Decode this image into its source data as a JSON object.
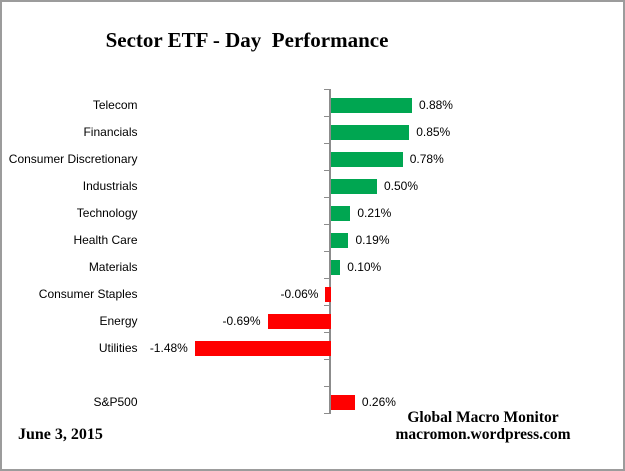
{
  "title": "Sector ETF - Day  Performance",
  "date_label": "June 3, 2015",
  "credit": {
    "line1": "Global Macro Monitor",
    "line2": "macromon.wordpress.com"
  },
  "chart_data": {
    "type": "bar",
    "orientation": "horizontal",
    "title": "Sector ETF - Day  Performance",
    "xlabel": "",
    "ylabel": "",
    "unit": "%",
    "grid": false,
    "legend": "none",
    "x_tick_labels_visible": false,
    "zero_baseline": true,
    "xlim": [
      -1.6,
      1.0
    ],
    "categories": [
      "Telecom",
      "Financials",
      "Consumer Discretionary",
      "Industrials",
      "Technology",
      "Health Care",
      "Materials",
      "Consumer Staples",
      "Energy",
      "Utilities",
      "S&P500"
    ],
    "values": [
      0.88,
      0.85,
      0.78,
      0.5,
      0.21,
      0.19,
      0.1,
      -0.06,
      -0.69,
      -1.48,
      0.26
    ],
    "value_labels": [
      "0.88%",
      "0.85%",
      "0.78%",
      "0.50%",
      "0.21%",
      "0.19%",
      "0.10%",
      "-0.06%",
      "-0.69%",
      "-1.48%",
      "0.26%"
    ],
    "bar_colors": [
      "#00A651",
      "#00A651",
      "#00A651",
      "#00A651",
      "#00A651",
      "#00A651",
      "#00A651",
      "#FF0000",
      "#FF0000",
      "#FF0000",
      "#FF0000"
    ],
    "colors": {
      "positive": "#00A651",
      "negative": "#FF0000",
      "axis": "#8C8C8C"
    },
    "layout_note": "gap of one empty row between Utilities and S&P500"
  }
}
